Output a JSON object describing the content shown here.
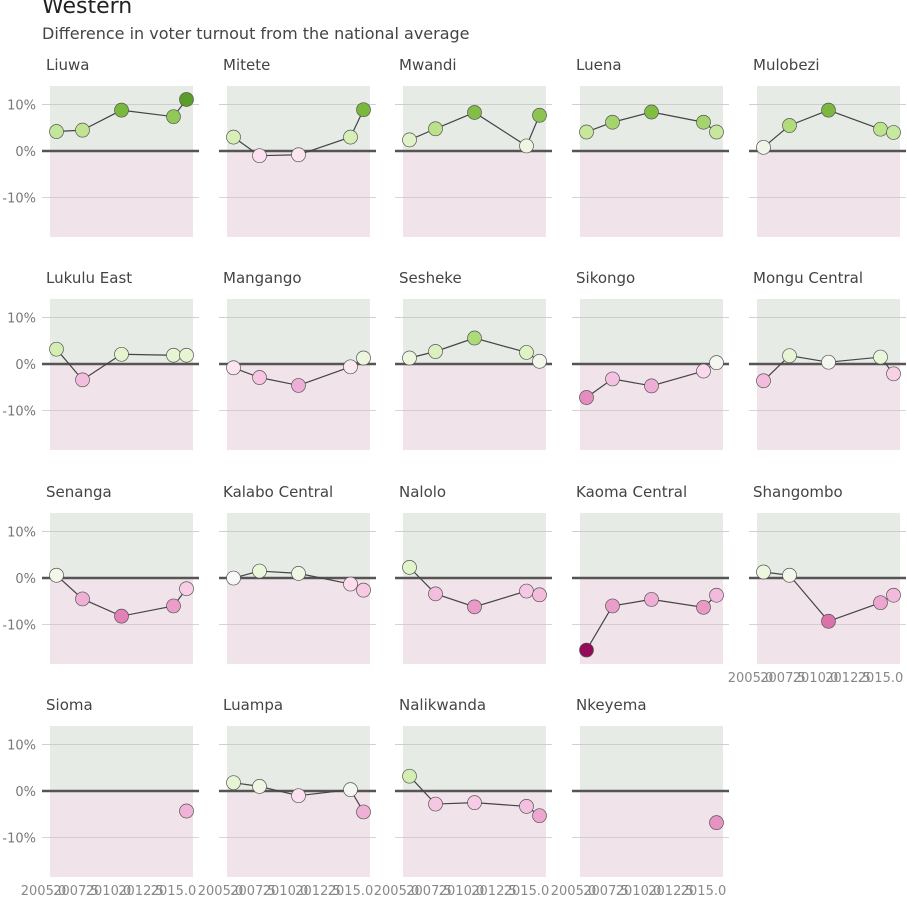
{
  "title": "Western",
  "subtitle": "Difference in voter turnout from the national average",
  "chart_data": {
    "type": "scatter",
    "facets": true,
    "x": [
      2006,
      2008,
      2011,
      2015,
      2016
    ],
    "x_tick_labels": [
      "2005.0",
      "2007.5",
      "2010.0",
      "2012.5",
      "2015.0"
    ],
    "x_tick_values": [
      2005.0,
      2007.5,
      2010.0,
      2012.5,
      2015.0
    ],
    "xlim": [
      2005.5,
      2016.5
    ],
    "y_tick_labels": [
      "10%",
      "0%",
      "-10%"
    ],
    "y_tick_values": [
      10,
      0,
      -10
    ],
    "ylim": [
      -18.5,
      14
    ],
    "colors": {
      "positive_band": "#e6ebe5",
      "negative_band": "#f0e4ea",
      "zero_line": "#555555",
      "connector": "#444444"
    },
    "series": [
      {
        "name": "Liuwa",
        "values": [
          4.2,
          4.5,
          8.8,
          7.4,
          11.1
        ]
      },
      {
        "name": "Mitete",
        "values": [
          3.0,
          -1.0,
          -0.8,
          3.0,
          8.9
        ]
      },
      {
        "name": "Mwandi",
        "values": [
          2.4,
          4.8,
          8.3,
          1.1,
          7.7
        ]
      },
      {
        "name": "Luena",
        "values": [
          4.1,
          6.2,
          8.4,
          6.2,
          4.1
        ]
      },
      {
        "name": "Mulobezi",
        "values": [
          0.8,
          5.5,
          8.8,
          4.7,
          4.0
        ]
      },
      {
        "name": "Lukulu East",
        "values": [
          3.2,
          -3.4,
          2.1,
          1.9,
          1.9
        ]
      },
      {
        "name": "Mangango",
        "values": [
          -0.8,
          -2.9,
          -4.6,
          -0.6,
          1.3
        ]
      },
      {
        "name": "Sesheke",
        "values": [
          1.3,
          2.7,
          5.6,
          2.5,
          0.6
        ]
      },
      {
        "name": "Sikongo",
        "values": [
          -7.2,
          -3.2,
          -4.7,
          -1.5,
          0.3
        ]
      },
      {
        "name": "Mongu Central",
        "values": [
          -3.6,
          1.8,
          0.4,
          1.5,
          -2.1
        ]
      },
      {
        "name": "Senanga",
        "values": [
          0.6,
          -4.5,
          -8.2,
          -6.0,
          -2.3
        ]
      },
      {
        "name": "Kalabo Central",
        "values": [
          0.0,
          1.5,
          1.0,
          -1.3,
          -2.6
        ]
      },
      {
        "name": "Nalolo",
        "values": [
          2.3,
          -3.4,
          -6.2,
          -2.8,
          -3.6
        ]
      },
      {
        "name": "Kaoma Central",
        "values": [
          -15.5,
          -6.0,
          -4.6,
          -6.3,
          -3.7
        ]
      },
      {
        "name": "Shangombo",
        "values": [
          1.3,
          0.6,
          -9.3,
          -5.3,
          -3.7
        ]
      },
      {
        "name": "Sioma",
        "values": [
          null,
          null,
          null,
          null,
          -4.3
        ]
      },
      {
        "name": "Luampa",
        "values": [
          1.8,
          1.0,
          -1.0,
          0.3,
          -4.5
        ]
      },
      {
        "name": "Nalikwanda",
        "values": [
          3.2,
          -2.8,
          -2.5,
          -3.3,
          -5.3
        ]
      },
      {
        "name": "Nkeyema",
        "values": [
          null,
          null,
          null,
          null,
          -6.8
        ]
      }
    ]
  }
}
